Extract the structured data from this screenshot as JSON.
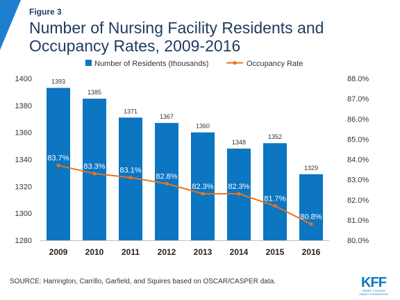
{
  "header": {
    "figure_label": "Figure 3",
    "title": "Number of Nursing Facility Residents and Occupancy Rates, 2009-2016",
    "accent_color": "#1f7fcf"
  },
  "chart_data": {
    "type": "bar+line",
    "categories": [
      "2009",
      "2010",
      "2011",
      "2012",
      "2013",
      "2014",
      "2015",
      "2016"
    ],
    "series": [
      {
        "name": "Number of Residents (thousands)",
        "type": "bar",
        "axis": "left",
        "color": "#0c76c2",
        "values": [
          1393,
          1385,
          1371,
          1367,
          1360,
          1348,
          1352,
          1329
        ],
        "labels": [
          "1393",
          "1385",
          "1371",
          "1367",
          "1360",
          "1348",
          "1352",
          "1329"
        ]
      },
      {
        "name": "Occupancy Rate",
        "type": "line",
        "axis": "right",
        "color": "#e8731d",
        "values": [
          83.7,
          83.3,
          83.1,
          82.8,
          82.3,
          82.3,
          81.7,
          80.8
        ],
        "labels": [
          "83.7%",
          "83.3%",
          "83.1%",
          "82.8%",
          "82.3%",
          "82.3%",
          "81.7%",
          "80.8%"
        ]
      }
    ],
    "y_left": {
      "min": 1280,
      "max": 1400,
      "ticks": [
        "1280",
        "1300",
        "1320",
        "1340",
        "1360",
        "1380",
        "1400"
      ]
    },
    "y_right": {
      "min": 80.0,
      "max": 88.0,
      "ticks": [
        "80.0%",
        "81.0%",
        "82.0%",
        "83.0%",
        "84.0%",
        "85.0%",
        "86.0%",
        "87.0%",
        "88.0%"
      ]
    },
    "grid": false,
    "legend_position": "top"
  },
  "footer": {
    "source": "SOURCE: Harrington, Carrillo, Garfield, and Squires based on OSCAR/CASPER data.",
    "logo_text": "KFF",
    "logo_subtext": "HENRY J KAISER\nFAMILY FOUNDATION"
  }
}
